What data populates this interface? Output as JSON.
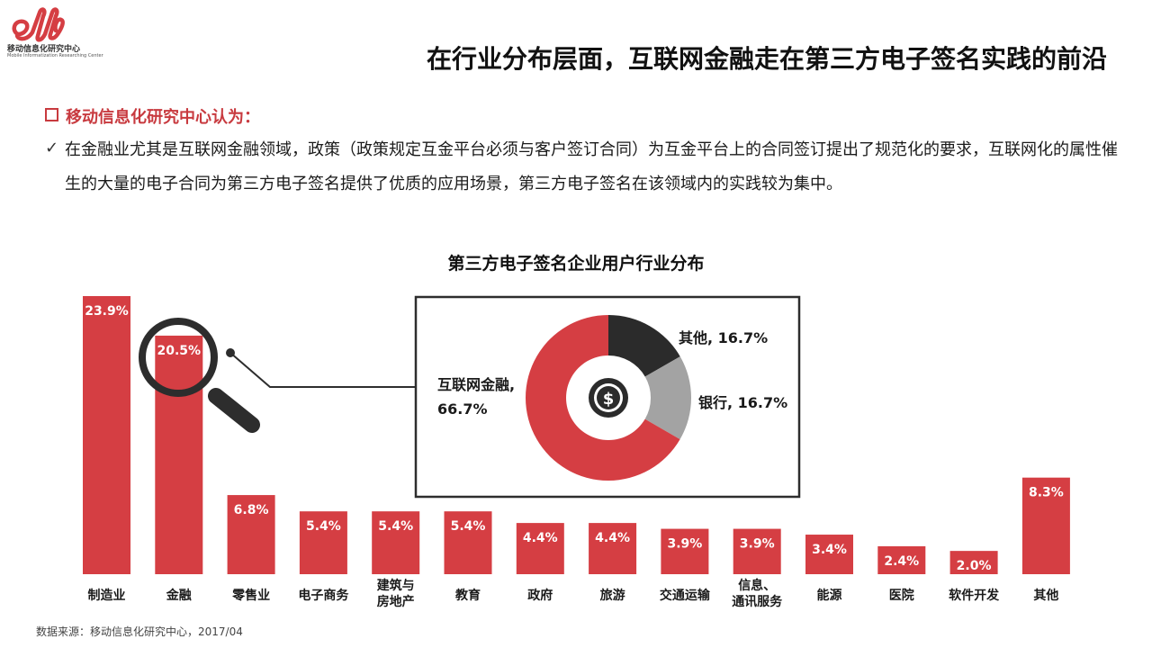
{
  "logo": {
    "org_cn": "移动信息化研究中心",
    "org_en": "Mobile Informatization Researching Center"
  },
  "header": {
    "title": "在行业分布层面，互联网金融走在第三方电子签名实践的前沿"
  },
  "section": {
    "heading": "移动信息化研究中心认为：",
    "body": "在金融业尤其是互联网金融领域，政策（政策规定互金平台必须与客户签订合同）为互金平台上的合同签订提出了规范化的要求，互联网化的属性催生的大量的电子合同为第三方电子签名提供了优质的应用场景，第三方电子签名在该领域内的实践较为集中。"
  },
  "source": "数据来源：移动信息化研究中心，2017/04",
  "colors": {
    "bar": "#d53e43",
    "dark": "#2b2b2b",
    "gray": "#a3a3a3",
    "accent": "#c83a3f"
  },
  "chart_data": [
    {
      "type": "bar",
      "title": "第三方电子签名企业用户行业分布",
      "categories": [
        "制造业",
        "金融",
        "零售业",
        "电子商务",
        "建筑与\n房地产",
        "教育",
        "政府",
        "旅游",
        "交通运输",
        "信息、\n通讯服务",
        "能源",
        "医院",
        "软件开发",
        "其他"
      ],
      "values": [
        23.9,
        20.5,
        6.8,
        5.4,
        5.4,
        5.4,
        4.4,
        4.4,
        3.9,
        3.9,
        3.4,
        2.4,
        2.0,
        8.3
      ],
      "value_labels": [
        "23.9%",
        "20.5%",
        "6.8%",
        "5.4%",
        "5.4%",
        "5.4%",
        "4.4%",
        "4.4%",
        "3.9%",
        "3.9%",
        "3.4%",
        "2.4%",
        "2.0%",
        "8.3%"
      ],
      "unit": "%",
      "highlighted_category": "金融",
      "grid": false
    },
    {
      "type": "pie",
      "style": "donut",
      "center_icon": "dollar-coin-icon",
      "slices": [
        {
          "label": "互联网金融",
          "value": 66.7,
          "display": "互联网金融,\n66.7%",
          "color": "#d53e43"
        },
        {
          "label": "其他",
          "value": 16.7,
          "display": "其他, 16.7%",
          "color": "#2b2b2b"
        },
        {
          "label": "银行",
          "value": 16.7,
          "display": "银行, 16.7%",
          "color": "#a3a3a3"
        }
      ]
    }
  ]
}
